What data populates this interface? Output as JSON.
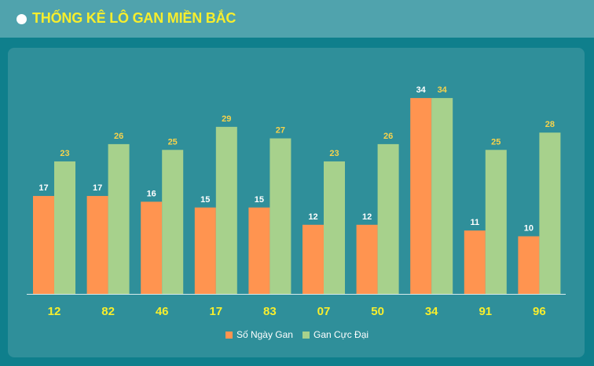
{
  "header": {
    "title": "THỐNG KÊ LÔ GAN MIỀN BẮC"
  },
  "chart_data": {
    "type": "bar",
    "categories": [
      "12",
      "82",
      "46",
      "17",
      "83",
      "07",
      "50",
      "34",
      "91",
      "96"
    ],
    "series": [
      {
        "name": "Số Ngày Gan",
        "values": [
          17,
          17,
          16,
          15,
          15,
          12,
          12,
          34,
          11,
          10
        ],
        "color": "#ff9450"
      },
      {
        "name": "Gan Cực Đại",
        "values": [
          23,
          26,
          25,
          29,
          27,
          23,
          26,
          34,
          25,
          28
        ],
        "color": "#a7d18c"
      }
    ],
    "ylim": [
      0,
      35
    ],
    "grid": false,
    "legend": "bottom-center",
    "category_label_color": "#f7ee2d",
    "value_label_colors": [
      "#ffffff",
      "#f7d34b"
    ]
  }
}
